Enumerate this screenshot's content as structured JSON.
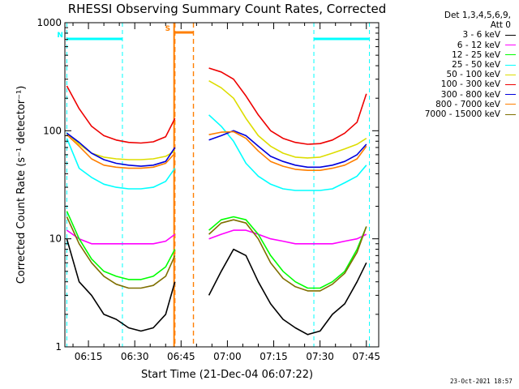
{
  "chart_data": {
    "type": "line",
    "title": "RHESSI Observing Summary Count Rates, Corrected",
    "xlabel": "Start Time (21-Dec-04 06:07:22)",
    "ylabel": "Corrected Count Rate (s⁻¹ detector⁻¹)",
    "y_scale": "log",
    "ylim": [
      1,
      1000
    ],
    "xlim": [
      "06:07:22",
      "07:49:00"
    ],
    "x_ticks": [
      "06:15",
      "06:30",
      "06:45",
      "07:00",
      "07:15",
      "07:30",
      "07:45"
    ],
    "y_ticks": [
      "1",
      "10",
      "100",
      "1000"
    ],
    "grid": false,
    "legend_placement": "right",
    "legend_header": [
      "Det 1,3,4,5,6,9,",
      "Att 0"
    ],
    "markers": [
      {
        "label": "N",
        "type": "night",
        "start": "06:08",
        "end": "06:26",
        "color": "#00ffff"
      },
      {
        "label": "S",
        "type": "saa",
        "start": "06:43",
        "end": "06:49",
        "color": "#ff7f00"
      },
      {
        "label": "",
        "type": "night",
        "start": "07:28",
        "end": "07:46",
        "color": "#00ffff"
      }
    ],
    "x": [
      "06:08",
      "06:12",
      "06:16",
      "06:20",
      "06:24",
      "06:28",
      "06:32",
      "06:36",
      "06:40",
      "06:43",
      "06:50",
      "06:54",
      "06:58",
      "07:02",
      "07:06",
      "07:10",
      "07:14",
      "07:18",
      "07:22",
      "07:26",
      "07:30",
      "07:34",
      "07:38",
      "07:42",
      "07:45"
    ],
    "series": [
      {
        "name": "3 - 6 keV",
        "color": "#000000",
        "values": [
          10,
          4,
          3,
          2,
          1.8,
          1.5,
          1.4,
          1.5,
          2,
          4,
          null,
          3,
          5,
          8,
          7,
          4,
          2.5,
          1.8,
          1.5,
          1.3,
          1.4,
          2,
          2.5,
          4,
          6
        ]
      },
      {
        "name": "6 - 12 keV",
        "color": "#ff00ff",
        "values": [
          12,
          10,
          9,
          9,
          9,
          9,
          9,
          9,
          9.5,
          11,
          null,
          10,
          11,
          12,
          12,
          11,
          10,
          9.5,
          9,
          9,
          9,
          9,
          9.5,
          10,
          11
        ]
      },
      {
        "name": "12 - 25 keV",
        "color": "#00ff00",
        "values": [
          18,
          10,
          6.5,
          5,
          4.5,
          4.2,
          4.2,
          4.5,
          5.5,
          8,
          null,
          12,
          15,
          16,
          15,
          11,
          7,
          5,
          4,
          3.5,
          3.5,
          4,
          5,
          8,
          13
        ]
      },
      {
        "name": "25 - 50 keV",
        "color": "#00ffff",
        "values": [
          85,
          45,
          37,
          32,
          30,
          29,
          29,
          30,
          34,
          45,
          null,
          140,
          110,
          80,
          50,
          38,
          32,
          29,
          28,
          28,
          28,
          29,
          33,
          38,
          48
        ]
      },
      {
        "name": "50 - 100 keV",
        "color": "#dddd00",
        "values": [
          95,
          75,
          62,
          57,
          55,
          54,
          54,
          55,
          58,
          65,
          null,
          290,
          250,
          200,
          130,
          90,
          72,
          62,
          57,
          56,
          57,
          62,
          68,
          75,
          85
        ]
      },
      {
        "name": "100 - 300 keV",
        "color": "#ee0000",
        "values": [
          260,
          160,
          110,
          90,
          82,
          78,
          77,
          79,
          88,
          130,
          null,
          380,
          350,
          300,
          210,
          140,
          100,
          85,
          78,
          75,
          76,
          82,
          95,
          120,
          220
        ]
      },
      {
        "name": "300 - 800 keV",
        "color": "#0000dd",
        "values": [
          95,
          78,
          62,
          54,
          50,
          48,
          47,
          48,
          52,
          70,
          null,
          82,
          90,
          100,
          90,
          72,
          58,
          52,
          48,
          46,
          46,
          48,
          52,
          60,
          75
        ]
      },
      {
        "name": "800 - 7000 keV",
        "color": "#ff7f00",
        "values": [
          92,
          72,
          55,
          48,
          46,
          45,
          45,
          46,
          50,
          62,
          null,
          92,
          97,
          98,
          85,
          65,
          52,
          47,
          44,
          43,
          43,
          45,
          48,
          55,
          72
        ]
      },
      {
        "name": "7000 - 15000 keV",
        "color": "#7f6f00",
        "values": [
          16,
          9,
          6,
          4.5,
          3.8,
          3.5,
          3.5,
          3.7,
          4.5,
          7,
          null,
          11,
          14,
          15,
          14,
          10,
          6,
          4.3,
          3.6,
          3.3,
          3.3,
          3.8,
          4.8,
          7.5,
          13
        ]
      }
    ]
  },
  "footer": {
    "date": "23-Oct-2021 18:57"
  }
}
